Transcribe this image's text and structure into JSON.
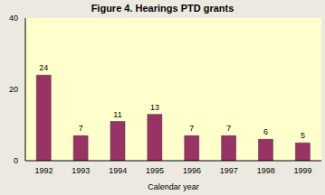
{
  "chart_data": {
    "type": "bar",
    "title": "Figure 4. Hearings PTD grants",
    "x_label": "Calendar year",
    "categories": [
      "1992",
      "1993",
      "1994",
      "1995",
      "1996",
      "1997",
      "1998",
      "1999"
    ],
    "values": [
      24,
      7,
      11,
      13,
      7,
      7,
      6,
      5
    ],
    "color": "#993366",
    "ylim": [
      0,
      40
    ],
    "yticks": [
      0,
      20,
      40
    ],
    "grid": false,
    "data_labels": true
  }
}
